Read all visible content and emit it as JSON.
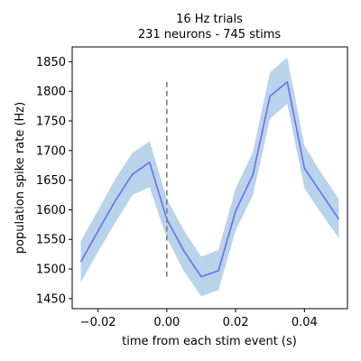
{
  "chart_data": {
    "type": "line",
    "title": "16 Hz trials",
    "subtitle": "231 neurons - 745 stims",
    "xlabel": "time from each stim event (s)",
    "ylabel": "population spike rate (Hz)",
    "xlim": [
      -0.0275,
      0.0525
    ],
    "ylim": [
      1433,
      1875
    ],
    "xticks": [
      -0.02,
      0.0,
      0.02,
      0.04
    ],
    "xtick_labels": [
      "−0.02",
      "0.00",
      "0.02",
      "0.04"
    ],
    "yticks": [
      1450,
      1500,
      1550,
      1600,
      1650,
      1700,
      1750,
      1800,
      1850
    ],
    "ytick_labels": [
      "1450",
      "1500",
      "1550",
      "1600",
      "1650",
      "1700",
      "1750",
      "1800",
      "1850"
    ],
    "grid": false,
    "series": [
      {
        "x": [
          -0.025,
          -0.02,
          -0.015,
          -0.01,
          -0.005,
          0.0,
          0.005,
          0.01,
          0.015,
          0.02,
          0.025,
          0.03,
          0.035,
          0.04,
          0.045,
          0.05
        ],
        "values": [
          1512,
          1564,
          1615,
          1660,
          1680,
          1584,
          1530,
          1487,
          1497,
          1598,
          1659,
          1792,
          1816,
          1670,
          1627,
          1584
        ],
        "lower": [
          1477,
          1529,
          1578,
          1625,
          1638,
          1552,
          1496,
          1454,
          1464,
          1565,
          1624,
          1754,
          1779,
          1636,
          1593,
          1552
        ],
        "upper": [
          1547,
          1599,
          1652,
          1696,
          1716,
          1618,
          1565,
          1521,
          1532,
          1636,
          1697,
          1832,
          1857,
          1708,
          1661,
          1618
        ],
        "line_color": "#6b6ef0",
        "band_color": "#b9d3ea"
      }
    ],
    "vline": {
      "x": 0.0,
      "y_from": 1487,
      "y_to": 1816,
      "color": "#7f7f7f",
      "style": "dashed"
    }
  }
}
